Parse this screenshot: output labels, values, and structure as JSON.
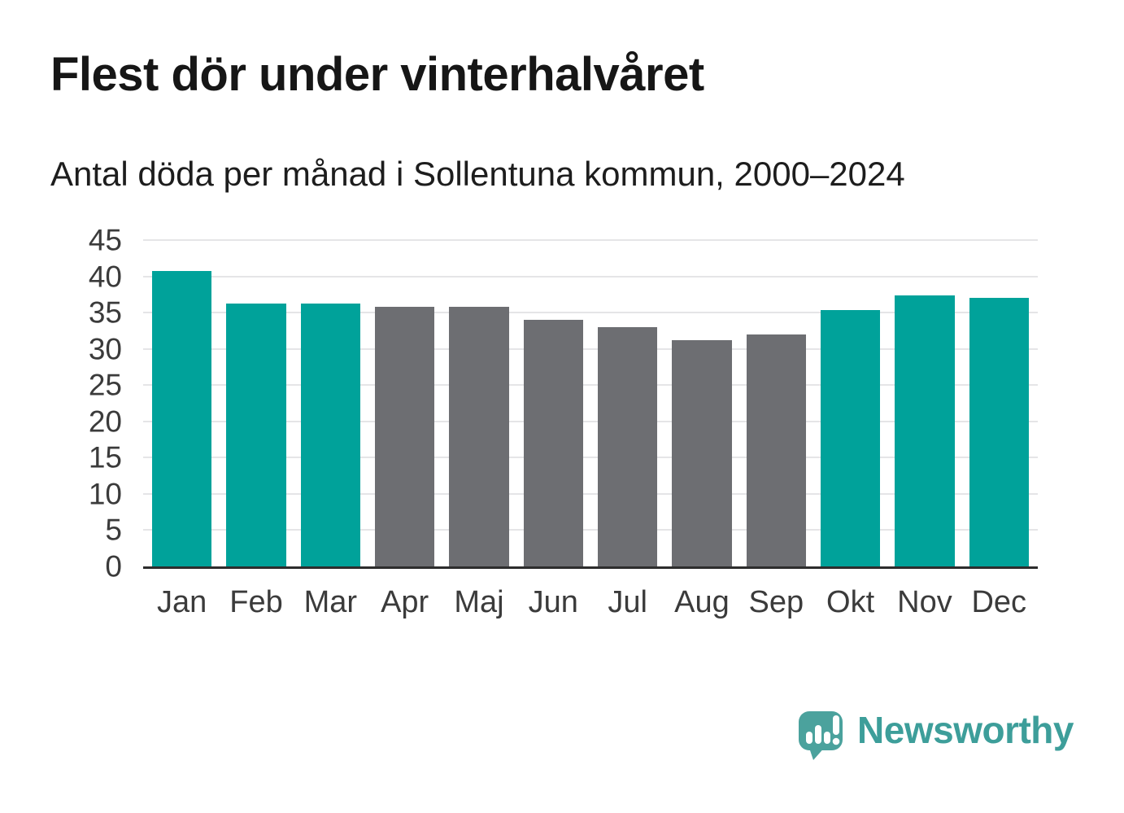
{
  "header": {
    "title": "Flest dör under vinterhalvåret",
    "subtitle": "Antal döda per månad i Sollentuna kommun, 2000–2024"
  },
  "chart_data": {
    "type": "bar",
    "title": "Flest dör under vinterhalvåret",
    "subtitle": "Antal döda per månad i Sollentuna kommun, 2000–2024",
    "categories": [
      "Jan",
      "Feb",
      "Mar",
      "Apr",
      "Maj",
      "Jun",
      "Jul",
      "Aug",
      "Sep",
      "Okt",
      "Nov",
      "Dec"
    ],
    "values": [
      40.7,
      36.3,
      36.3,
      35.8,
      35.8,
      34.0,
      33.0,
      31.2,
      32.0,
      35.4,
      37.4,
      37.0
    ],
    "highlighted": [
      true,
      true,
      true,
      false,
      false,
      false,
      false,
      false,
      false,
      true,
      true,
      true
    ],
    "xlabel": "",
    "ylabel": "",
    "ylim": [
      0,
      45
    ],
    "yticks": [
      0,
      5,
      10,
      15,
      20,
      25,
      30,
      35,
      40,
      45
    ],
    "grid": true,
    "legend": false
  },
  "colors": {
    "bar_highlight": "#00a29a",
    "bar_muted": "#6d6e72",
    "gridline": "#e5e5e7",
    "axis_line": "#2d2d2d",
    "tick_text": "#3b3b3b",
    "title_text": "#161616",
    "brand_teal": "#3d9e9a",
    "logo_bubble_teal": "#4ba29d"
  },
  "brand": {
    "wordmark": "Newsworthy",
    "icon": "newsworthy-speech-bubble-chart-icon"
  }
}
